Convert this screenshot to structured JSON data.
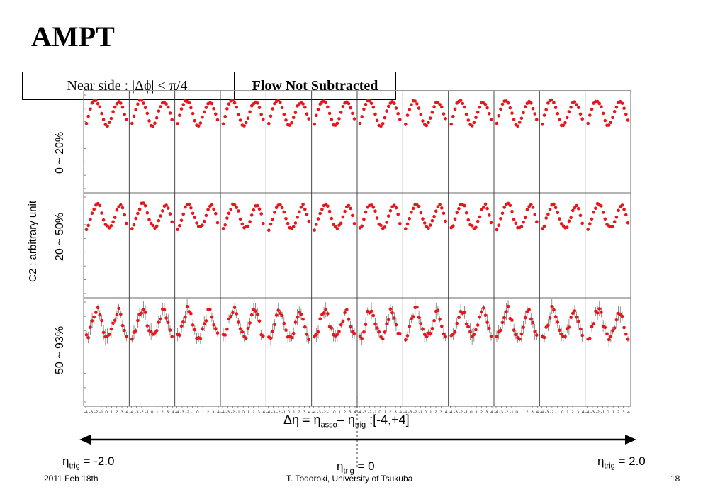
{
  "slide": {
    "title": "AMPT",
    "near_side_label": "Near  side : |Δϕ| < π/4",
    "flow_label": "Flow Not Subtracted",
    "footer_date": "2011 Feb 18th",
    "footer_author": "T. Todoroki, University of Tsukuba",
    "page_number": "18"
  },
  "axes": {
    "ylabel": "C2 : arbitrary unit",
    "xlabel_main": "Δη = η",
    "xlabel_sub1": "asso",
    "xlabel_mid": "– η",
    "xlabel_sub2": "trig",
    "xlabel_range": " :[-4,+4]",
    "eta_left_prefix": "η",
    "eta_left_sub": "trig",
    "eta_left_value": " = -2.0",
    "eta_mid_prefix": "η",
    "eta_mid_sub": "trig",
    "eta_mid_value": " = 0",
    "eta_right_prefix": "η",
    "eta_right_sub": "trig",
    "eta_right_value": " = 2.0"
  },
  "colors": {
    "marker": "#e8161b",
    "frame": "#999999",
    "divider": "#333333",
    "arrow": "#000000"
  },
  "chart_data": {
    "type": "scatter",
    "title": "AMPT",
    "ylabel": "C2 : arbitrary unit",
    "xlabel": "Δη = η_asso – η_trig :[-4,+4]",
    "n_eta_trig_bins": 12,
    "eta_trig_range": [
      -2.0,
      2.0
    ],
    "delta_eta_range": [
      -4,
      4
    ],
    "x_tick_labels": [
      "-4",
      "-3",
      "-2",
      "-1",
      "0",
      "1",
      "2",
      "3",
      "4"
    ],
    "rows": [
      {
        "centrality": "0 ~ 20%",
        "noise": 0.02,
        "error_bars": false,
        "shape": [
          0.35,
          0.55,
          0.72,
          0.85,
          0.9,
          0.87,
          0.78,
          0.62,
          0.45,
          0.32,
          0.3,
          0.38,
          0.52,
          0.68,
          0.8,
          0.86,
          0.84,
          0.75,
          0.6,
          0.45
        ]
      },
      {
        "centrality": "20 ~ 50%",
        "noise": 0.03,
        "error_bars": false,
        "shape": [
          0.3,
          0.4,
          0.55,
          0.7,
          0.82,
          0.88,
          0.85,
          0.72,
          0.55,
          0.42,
          0.35,
          0.32,
          0.38,
          0.5,
          0.65,
          0.78,
          0.85,
          0.8,
          0.65,
          0.45
        ]
      },
      {
        "centrality": "50 ~ 93%",
        "noise": 0.08,
        "error_bars": true,
        "shape": [
          0.25,
          0.3,
          0.45,
          0.65,
          0.82,
          0.9,
          0.8,
          0.6,
          0.42,
          0.3,
          0.25,
          0.28,
          0.4,
          0.58,
          0.75,
          0.85,
          0.78,
          0.58,
          0.4,
          0.28
        ]
      }
    ]
  }
}
